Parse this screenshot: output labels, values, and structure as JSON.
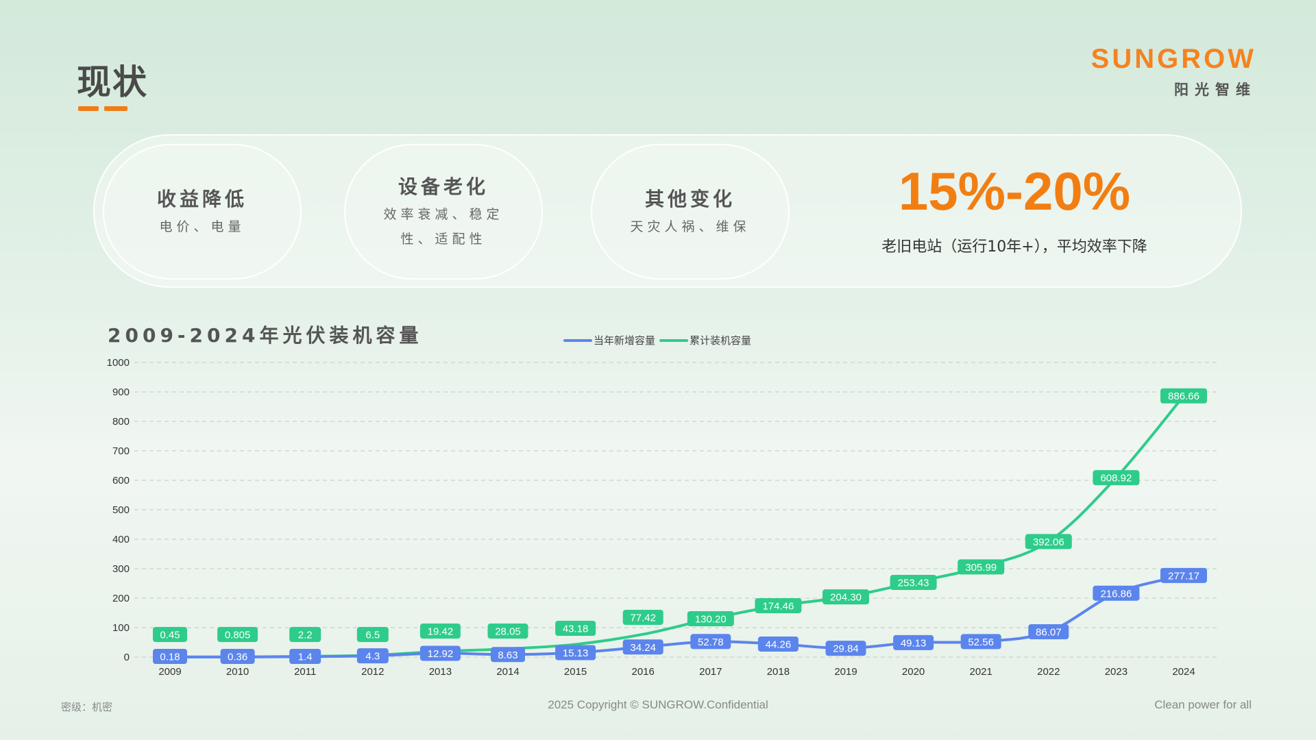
{
  "header": {
    "title": "现状"
  },
  "brand": {
    "name": "SUNGROW",
    "sub": "阳光智维"
  },
  "summary": {
    "bubbles": [
      {
        "heading": "收益降低",
        "sub": "电价、电量"
      },
      {
        "heading": "设备老化",
        "sub": "效率衰减、稳定性、适配性"
      },
      {
        "heading": "其他变化",
        "sub": "天灾人祸、维保"
      }
    ],
    "stat": {
      "value": "15%-20%",
      "caption": "老旧电站（运行10年+），平均效率下降"
    }
  },
  "chart_data": {
    "type": "line",
    "title": "2009-2024年光伏装机容量",
    "categories": [
      "2009",
      "2010",
      "2011",
      "2012",
      "2013",
      "2014",
      "2015",
      "2016",
      "2017",
      "2018",
      "2019",
      "2020",
      "2021",
      "2022",
      "2023",
      "2024"
    ],
    "series": [
      {
        "name": "当年新增容量",
        "color": "#5b85ec",
        "values": [
          0.18,
          0.36,
          1.4,
          4.3,
          12.92,
          8.63,
          15.13,
          34.24,
          52.78,
          44.26,
          29.84,
          49.13,
          52.56,
          86.07,
          216.86,
          277.17
        ],
        "labels": [
          "0.18",
          "0.36",
          "1.4",
          "4.3",
          "12.92",
          "8.63",
          "15.13",
          "34.24",
          "52.78",
          "44.26",
          "29.84",
          "49.13",
          "52.56",
          "86.07",
          "216.86",
          "277.17"
        ]
      },
      {
        "name": "累计装机容量",
        "color": "#2ecc8a",
        "values": [
          0.45,
          0.805,
          2.2,
          6.5,
          19.42,
          28.05,
          43.18,
          77.42,
          130.2,
          174.46,
          204.3,
          253.43,
          305.99,
          392.06,
          608.92,
          886.66
        ],
        "labels": [
          "0.45",
          "0.805",
          "2.2",
          "6.5",
          "19.42",
          "28.05",
          "43.18",
          "77.42",
          "130.20",
          "174.46",
          "204.30",
          "253.43",
          "305.99",
          "392.06",
          "608.92",
          "886.66"
        ]
      }
    ],
    "ylim": [
      0,
      1000
    ],
    "yticks": [
      0,
      100,
      200,
      300,
      400,
      500,
      600,
      700,
      800,
      900,
      1000
    ],
    "grid": true,
    "legend": "top-center"
  },
  "footer": {
    "left": "密级：机密",
    "center": "2025 Copyright © SUNGROW.Confidential",
    "right": "Clean power for all"
  }
}
